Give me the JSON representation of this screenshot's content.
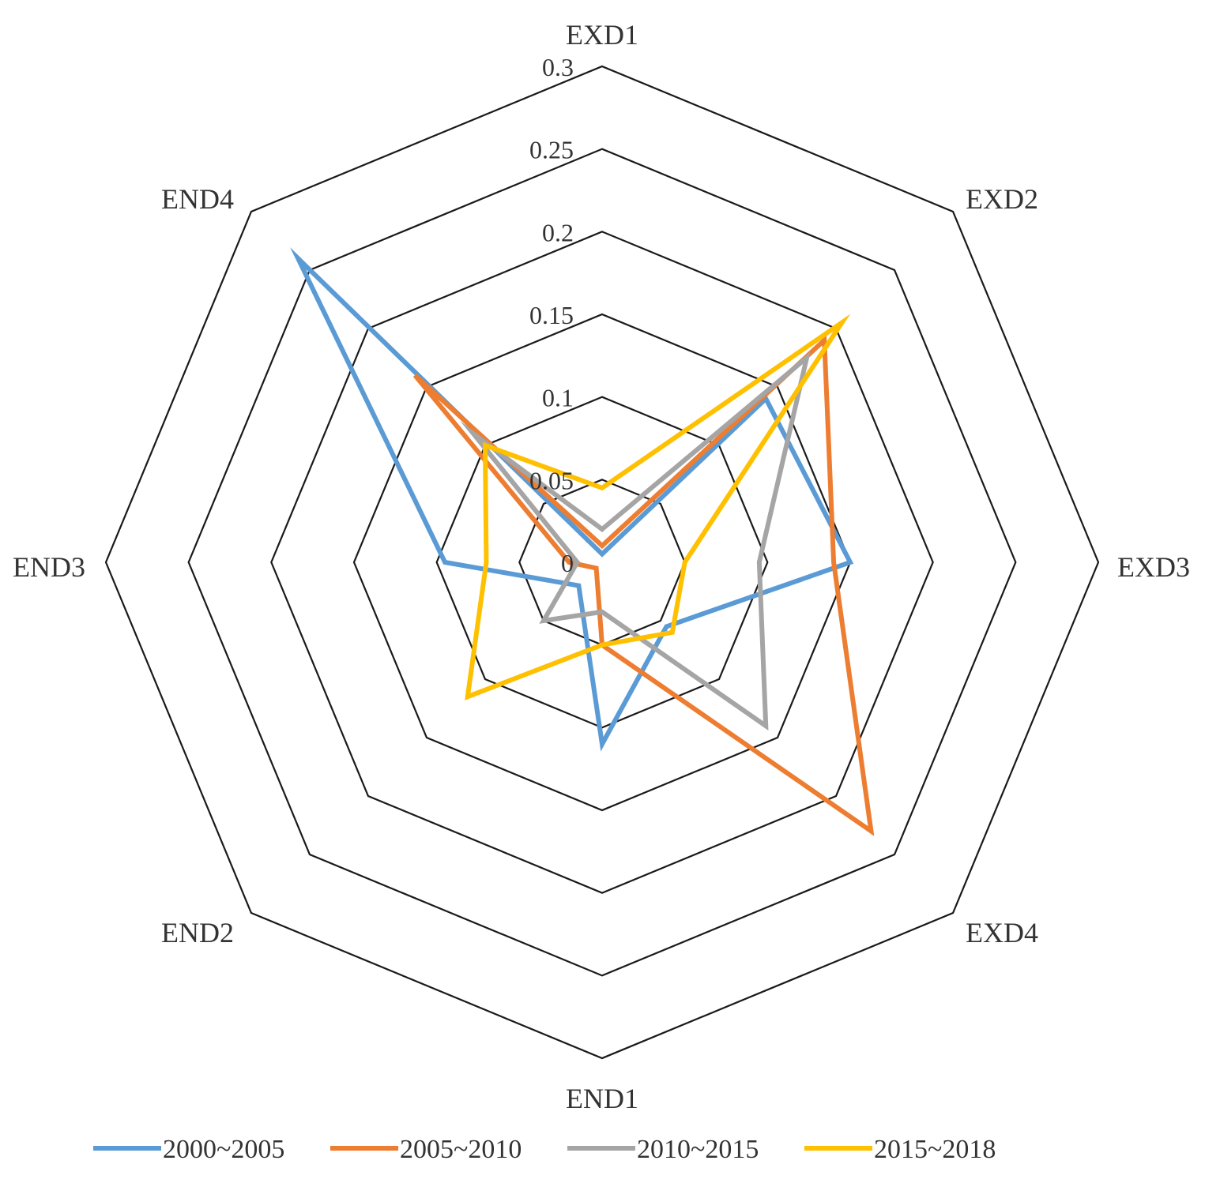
{
  "chart_data": {
    "type": "radar",
    "title": "",
    "axes": [
      "EXD1",
      "EXD2",
      "EXD3",
      "EXD4",
      "END1",
      "END2",
      "END3",
      "END4"
    ],
    "range": [
      0,
      0.3
    ],
    "ticks": [
      "0",
      "0.05",
      "0.1",
      "0.15",
      "0.2",
      "0.25",
      "0.3"
    ],
    "tick_values": [
      0,
      0.05,
      0.1,
      0.15,
      0.2,
      0.25,
      0.3
    ],
    "grid": true,
    "legend_position": "bottom",
    "series": [
      {
        "name": "2000~2005",
        "color": "#5b9bd5",
        "values": [
          0.005,
          0.14,
          0.15,
          0.055,
          0.11,
          0.02,
          0.095,
          0.26
        ]
      },
      {
        "name": "2005~2010",
        "color": "#ed7d31",
        "values": [
          0.01,
          0.19,
          0.14,
          0.23,
          0.05,
          0.005,
          0.02,
          0.16
        ]
      },
      {
        "name": "2010~2015",
        "color": "#a5a5a5",
        "values": [
          0.02,
          0.175,
          0.095,
          0.14,
          0.03,
          0.05,
          0.015,
          0.11
        ]
      },
      {
        "name": "2015~2018",
        "color": "#ffc000",
        "values": [
          0.045,
          0.205,
          0.05,
          0.06,
          0.05,
          0.115,
          0.07,
          0.1
        ]
      }
    ]
  }
}
